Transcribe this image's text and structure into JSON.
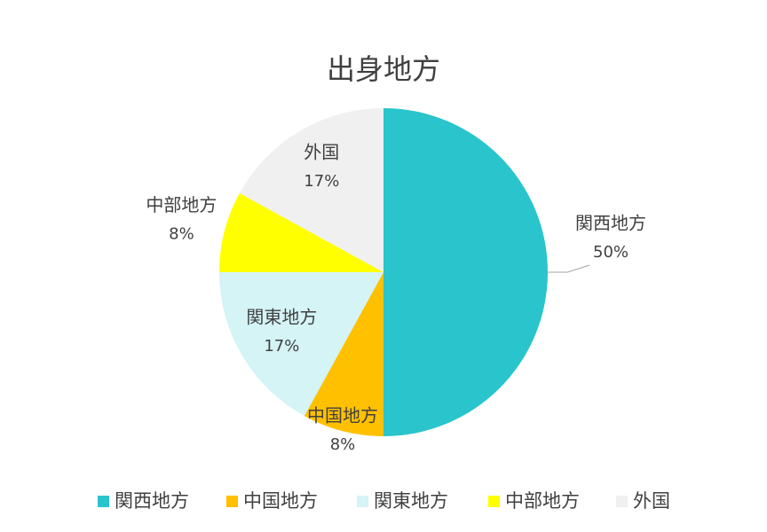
{
  "chart_data": {
    "type": "pie",
    "title": "出身地方",
    "categories": [
      "関西地方",
      "中国地方",
      "関東地方",
      "中部地方",
      "外国"
    ],
    "values": [
      50,
      8,
      17,
      8,
      17
    ],
    "value_labels": [
      "50%",
      "8%",
      "17%",
      "8%",
      "17%"
    ],
    "colors": [
      "#29c4cc",
      "#ffc000",
      "#d4f4f6",
      "#ffff00",
      "#f0f0f0"
    ],
    "legend": "bottom"
  }
}
